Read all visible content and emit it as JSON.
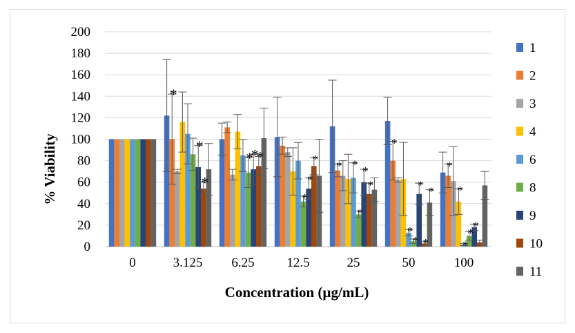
{
  "chart_data": {
    "type": "bar",
    "xlabel": "Concentration (µg/mL)",
    "ylabel": "% Viability",
    "ylim": [
      0,
      200
    ],
    "yticks": [
      "0",
      "20",
      "40",
      "60",
      "80",
      "100",
      "120",
      "140",
      "160",
      "180",
      "200"
    ],
    "grid": "horizontal",
    "legend_position": "right",
    "categories": [
      "0",
      "3.125",
      "6.25",
      "12.5",
      "25",
      "50",
      "100"
    ],
    "series": [
      {
        "name": "1",
        "color": "#4472C4",
        "values": [
          100,
          122,
          100,
          102,
          112,
          117,
          69
        ],
        "errors": [
          0,
          52,
          15,
          37,
          43,
          22,
          19
        ],
        "sig": [
          false,
          false,
          false,
          false,
          false,
          false,
          false
        ]
      },
      {
        "name": "2",
        "color": "#ED7D31",
        "values": [
          100,
          100,
          111,
          94,
          71,
          80,
          66
        ],
        "errors": [
          0,
          42,
          5,
          8,
          6,
          18,
          11
        ],
        "sig": [
          false,
          true,
          false,
          false,
          true,
          true,
          true
        ]
      },
      {
        "name": "3",
        "color": "#A5A5A5",
        "values": [
          100,
          70,
          67,
          88,
          66,
          62,
          61
        ],
        "errors": [
          0,
          2,
          5,
          4,
          14,
          2,
          32
        ],
        "sig": [
          false,
          false,
          false,
          false,
          false,
          false,
          false
        ]
      },
      {
        "name": "4",
        "color": "#FFC000",
        "values": [
          100,
          116,
          107,
          70,
          63,
          63,
          42
        ],
        "errors": [
          0,
          28,
          16,
          22,
          23,
          34,
          12
        ],
        "sig": [
          false,
          false,
          false,
          false,
          false,
          false,
          true
        ]
      },
      {
        "name": "6",
        "color": "#5B9BD5",
        "values": [
          100,
          105,
          85,
          80,
          64,
          13,
          2
        ],
        "errors": [
          0,
          28,
          15,
          17,
          14,
          3,
          1
        ],
        "sig": [
          false,
          false,
          false,
          false,
          true,
          true,
          true
        ]
      },
      {
        "name": "8",
        "color": "#70AD47",
        "values": [
          100,
          86,
          69,
          42,
          30,
          5,
          10
        ],
        "errors": [
          0,
          15,
          14,
          5,
          3,
          2,
          4
        ],
        "sig": [
          false,
          false,
          true,
          true,
          true,
          true,
          true
        ]
      },
      {
        "name": "9",
        "color": "#264478",
        "values": [
          100,
          74,
          72,
          54,
          60,
          49,
          18
        ],
        "errors": [
          0,
          20,
          14,
          10,
          12,
          10,
          3
        ],
        "sig": [
          false,
          true,
          true,
          true,
          true,
          true,
          true
        ]
      },
      {
        "name": "10",
        "color": "#9E480E",
        "values": [
          100,
          54,
          75,
          75,
          49,
          3,
          4
        ],
        "errors": [
          0,
          6,
          9,
          8,
          10,
          2,
          2
        ],
        "sig": [
          false,
          true,
          true,
          true,
          true,
          true,
          false
        ]
      },
      {
        "name": "11",
        "color": "#636363",
        "values": [
          100,
          72,
          101,
          66,
          53,
          41,
          57
        ],
        "errors": [
          0,
          24,
          28,
          34,
          11,
          12,
          13
        ],
        "sig": [
          false,
          false,
          false,
          false,
          false,
          true,
          false
        ]
      }
    ]
  }
}
